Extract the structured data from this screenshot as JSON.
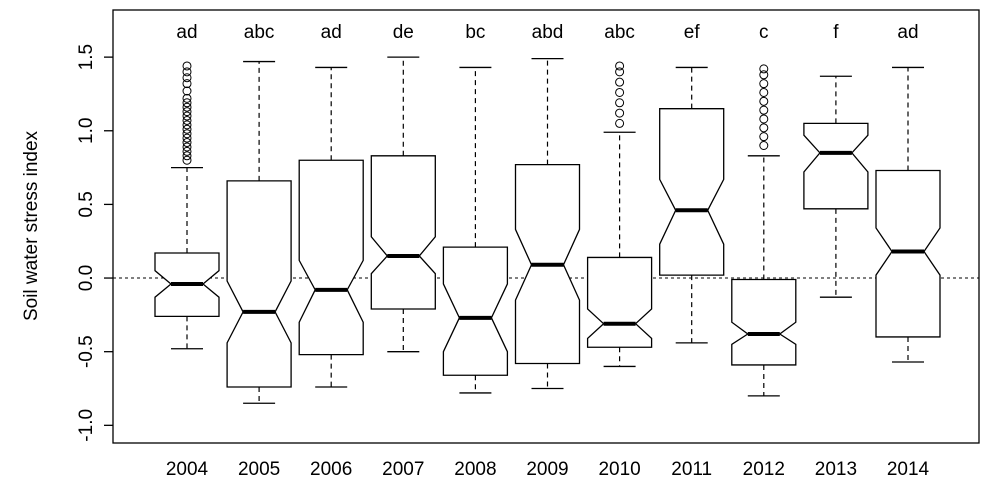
{
  "chart_data": {
    "type": "boxplot",
    "y_label": "Soil water stress index",
    "categories": [
      "2004",
      "2005",
      "2006",
      "2007",
      "2008",
      "2009",
      "2010",
      "2011",
      "2012",
      "2013",
      "2014"
    ],
    "group_letters": [
      "ad",
      "abc",
      "ad",
      "de",
      "bc",
      "abd",
      "abc",
      "ef",
      "c",
      "f",
      "ad"
    ],
    "boxes": [
      {
        "low": -0.48,
        "q1": -0.26,
        "notch_low": -0.13,
        "median": -0.04,
        "notch_high": 0.05,
        "q3": 0.17,
        "high": 0.75,
        "outliers": [
          0.8,
          0.83,
          0.86,
          0.89,
          0.92,
          0.95,
          0.98,
          1.01,
          1.04,
          1.07,
          1.1,
          1.13,
          1.16,
          1.19,
          1.22,
          1.27,
          1.32,
          1.36,
          1.4,
          1.44
        ]
      },
      {
        "low": -0.85,
        "q1": -0.74,
        "notch_low": -0.44,
        "median": -0.23,
        "notch_high": -0.02,
        "q3": 0.66,
        "high": 1.47,
        "outliers": []
      },
      {
        "low": -0.74,
        "q1": -0.52,
        "notch_low": -0.3,
        "median": -0.08,
        "notch_high": 0.12,
        "q3": 0.8,
        "high": 1.43,
        "outliers": []
      },
      {
        "low": -0.5,
        "q1": -0.21,
        "notch_low": 0.03,
        "median": 0.15,
        "notch_high": 0.28,
        "q3": 0.83,
        "high": 1.5,
        "outliers": []
      },
      {
        "low": -0.78,
        "q1": -0.66,
        "notch_low": -0.5,
        "median": -0.27,
        "notch_high": -0.04,
        "q3": 0.21,
        "high": 1.43,
        "outliers": []
      },
      {
        "low": -0.75,
        "q1": -0.58,
        "notch_low": -0.15,
        "median": 0.09,
        "notch_high": 0.33,
        "q3": 0.77,
        "high": 1.49,
        "outliers": []
      },
      {
        "low": -0.6,
        "q1": -0.47,
        "notch_low": -0.41,
        "median": -0.31,
        "notch_high": -0.21,
        "q3": 0.14,
        "high": 0.99,
        "outliers": [
          1.05,
          1.12,
          1.19,
          1.26,
          1.33,
          1.4,
          1.44
        ]
      },
      {
        "low": -0.44,
        "q1": 0.02,
        "notch_low": 0.23,
        "median": 0.46,
        "notch_high": 0.67,
        "q3": 1.15,
        "high": 1.43,
        "outliers": []
      },
      {
        "low": -0.8,
        "q1": -0.59,
        "notch_low": -0.45,
        "median": -0.38,
        "notch_high": -0.3,
        "q3": -0.01,
        "high": 0.83,
        "outliers": [
          0.9,
          0.96,
          1.02,
          1.08,
          1.14,
          1.2,
          1.26,
          1.32,
          1.38,
          1.42
        ]
      },
      {
        "low": -0.13,
        "q1": 0.47,
        "notch_low": 0.72,
        "median": 0.85,
        "notch_high": 0.97,
        "q3": 1.05,
        "high": 1.37,
        "outliers": []
      },
      {
        "low": -0.57,
        "q1": -0.4,
        "notch_low": 0.02,
        "median": 0.18,
        "notch_high": 0.34,
        "q3": 0.73,
        "high": 1.43,
        "outliers": []
      }
    ],
    "reference_line": 0,
    "ylim": [
      -1.12,
      1.82
    ],
    "yticks": [
      {
        "value": -1,
        "label": "-1.0"
      },
      {
        "value": -0.5,
        "label": "-0.5"
      },
      {
        "value": 0,
        "label": "0.0"
      },
      {
        "value": 0.5,
        "label": "0.5"
      },
      {
        "value": 1,
        "label": "1.0"
      },
      {
        "value": 1.5,
        "label": "1.5"
      }
    ]
  }
}
